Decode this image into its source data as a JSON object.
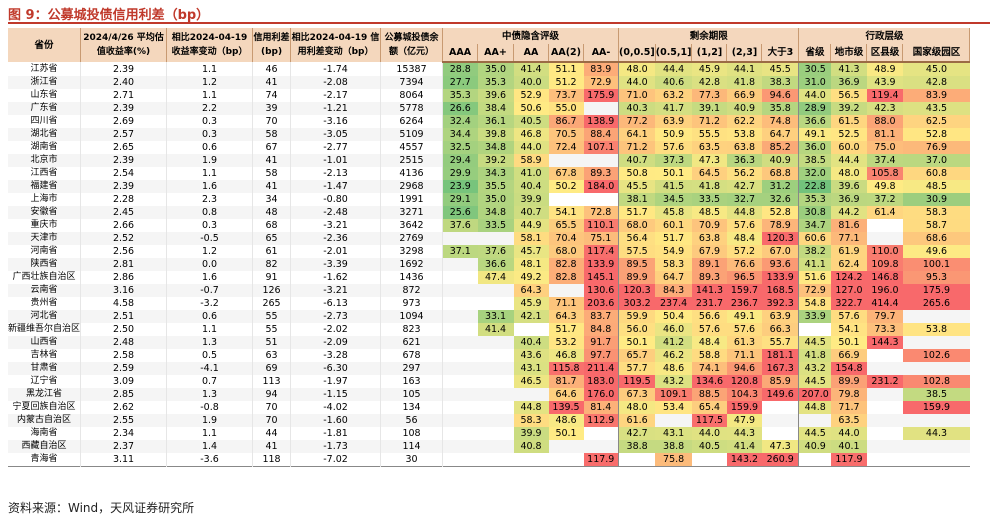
{
  "title": "图 9：公募城投债信用利差（bp）",
  "source": "资料来源：Wind，天风证券研究所",
  "headers": {
    "province": "省份",
    "avg_yield": "2024/4/26 平均估值收益率(%)",
    "yield_change": "相比2024-04-19 收益率变动（bp）",
    "spread": "信用利差 (bp)",
    "spread_change": "相比2024-04-19 信用利差变动（bp）",
    "balance": "公募城投债余额（亿元）",
    "group_rating": "中债隐含评级",
    "group_maturity": "剩余期限",
    "group_admin": "行政层级",
    "sub": [
      "AAA",
      "AA+",
      "AA",
      "AA(2)",
      "AA-",
      "(0,0.5]",
      "(0.5,1]",
      "(1,2]",
      "(2,3]",
      "大于3",
      "省级",
      "地市级",
      "区县级",
      "国家级园区"
    ]
  },
  "rows": [
    {
      "p": "江苏省",
      "y": "2.39",
      "yc": "1.1",
      "s": "46",
      "sc": "-1.74",
      "b": "15387",
      "v": [
        "28.8",
        "35.0",
        "41.4",
        "51.1",
        "83.9",
        "48.0",
        "44.4",
        "45.9",
        "44.1",
        "45.5",
        "30.5",
        "41.3",
        "48.9",
        "45.0"
      ]
    },
    {
      "p": "浙江省",
      "y": "2.40",
      "yc": "1.2",
      "s": "41",
      "sc": "-2.08",
      "b": "7394",
      "v": [
        "27.7",
        "35.3",
        "40.0",
        "51.2",
        "72.9",
        "44.0",
        "40.6",
        "42.8",
        "41.8",
        "38.3",
        "31.0",
        "36.9",
        "43.9",
        "42.8"
      ]
    },
    {
      "p": "山东省",
      "y": "2.71",
      "yc": "1.1",
      "s": "74",
      "sc": "-2.17",
      "b": "8064",
      "v": [
        "35.3",
        "39.6",
        "52.9",
        "73.7",
        "175.9",
        "71.0",
        "63.2",
        "77.3",
        "66.9",
        "94.6",
        "44.0",
        "56.5",
        "119.4",
        "83.9"
      ]
    },
    {
      "p": "广东省",
      "y": "2.39",
      "yc": "2.2",
      "s": "39",
      "sc": "-1.21",
      "b": "5778",
      "v": [
        "26.6",
        "38.4",
        "50.6",
        "55.0",
        "",
        "40.3",
        "41.7",
        "39.1",
        "40.9",
        "35.8",
        "28.9",
        "39.2",
        "42.3",
        "43.5"
      ]
    },
    {
      "p": "四川省",
      "y": "2.69",
      "yc": "0.3",
      "s": "70",
      "sc": "-3.16",
      "b": "6264",
      "v": [
        "32.4",
        "36.1",
        "40.5",
        "86.7",
        "138.9",
        "77.2",
        "63.9",
        "71.2",
        "62.2",
        "74.8",
        "36.6",
        "61.5",
        "88.0",
        "62.5"
      ]
    },
    {
      "p": "湖北省",
      "y": "2.57",
      "yc": "0.3",
      "s": "58",
      "sc": "-3.05",
      "b": "5109",
      "v": [
        "34.4",
        "39.8",
        "46.8",
        "70.5",
        "88.4",
        "64.1",
        "50.9",
        "55.5",
        "53.8",
        "64.7",
        "49.1",
        "52.5",
        "81.1",
        "52.8"
      ]
    },
    {
      "p": "湖南省",
      "y": "2.65",
      "yc": "0.6",
      "s": "67",
      "sc": "-2.77",
      "b": "4557",
      "v": [
        "32.5",
        "34.8",
        "44.0",
        "72.4",
        "107.1",
        "71.2",
        "57.6",
        "63.5",
        "63.8",
        "85.2",
        "36.0",
        "60.0",
        "75.0",
        "76.9"
      ]
    },
    {
      "p": "北京市",
      "y": "2.39",
      "yc": "1.9",
      "s": "41",
      "sc": "-1.01",
      "b": "2515",
      "v": [
        "29.4",
        "39.2",
        "58.9",
        "",
        "",
        "40.7",
        "37.3",
        "47.3",
        "36.3",
        "40.9",
        "38.5",
        "44.4",
        "37.4",
        "37.0"
      ]
    },
    {
      "p": "江西省",
      "y": "2.54",
      "yc": "1.1",
      "s": "58",
      "sc": "-2.13",
      "b": "4136",
      "v": [
        "29.9",
        "34.3",
        "41.0",
        "67.8",
        "89.3",
        "50.8",
        "50.1",
        "64.5",
        "56.2",
        "68.8",
        "32.0",
        "48.0",
        "105.8",
        "60.8"
      ]
    },
    {
      "p": "福建省",
      "y": "2.39",
      "yc": "1.6",
      "s": "41",
      "sc": "-1.47",
      "b": "2968",
      "v": [
        "23.9",
        "35.5",
        "40.4",
        "50.2",
        "184.0",
        "45.5",
        "41.5",
        "41.8",
        "42.7",
        "31.2",
        "22.8",
        "39.6",
        "49.8",
        "48.5"
      ]
    },
    {
      "p": "上海市",
      "y": "2.28",
      "yc": "2.3",
      "s": "34",
      "sc": "-0.80",
      "b": "1991",
      "v": [
        "29.1",
        "35.0",
        "39.9",
        "",
        "",
        "38.1",
        "34.5",
        "33.5",
        "32.7",
        "32.6",
        "35.3",
        "36.9",
        "37.2",
        "30.9"
      ]
    },
    {
      "p": "安徽省",
      "y": "2.45",
      "yc": "0.8",
      "s": "48",
      "sc": "-2.48",
      "b": "3271",
      "v": [
        "25.6",
        "34.8",
        "40.7",
        "54.1",
        "72.8",
        "51.7",
        "45.8",
        "48.5",
        "44.8",
        "52.8",
        "30.8",
        "44.2",
        "61.4",
        "58.3"
      ]
    },
    {
      "p": "重庆市",
      "y": "2.66",
      "yc": "0.3",
      "s": "68",
      "sc": "-3.21",
      "b": "3642",
      "v": [
        "37.6",
        "33.5",
        "44.9",
        "65.5",
        "110.1",
        "68.0",
        "60.1",
        "70.9",
        "57.6",
        "78.9",
        "34.7",
        "81.6",
        "",
        "58.7"
      ]
    },
    {
      "p": "天津市",
      "y": "2.52",
      "yc": "-0.5",
      "s": "65",
      "sc": "-2.36",
      "b": "2769",
      "v": [
        "",
        "",
        "58.1",
        "70.4",
        "75.1",
        "56.4",
        "51.7",
        "63.8",
        "48.4",
        "120.3",
        "60.6",
        "77.1",
        "",
        "68.6"
      ]
    },
    {
      "p": "河南省",
      "y": "2.56",
      "yc": "1.2",
      "s": "61",
      "sc": "-2.01",
      "b": "3298",
      "v": [
        "37.1",
        "37.6",
        "45.7",
        "68.0",
        "117.4",
        "57.5",
        "54.9",
        "67.9",
        "57.2",
        "67.0",
        "38.2",
        "61.9",
        "110.0",
        "49.6"
      ]
    },
    {
      "p": "陕西省",
      "y": "2.81",
      "yc": "0.0",
      "s": "82",
      "sc": "-3.39",
      "b": "1692",
      "v": [
        "",
        "36.6",
        "48.1",
        "82.8",
        "133.9",
        "89.5",
        "58.3",
        "89.1",
        "76.6",
        "93.6",
        "41.1",
        "62.4",
        "109.8",
        "100.1"
      ]
    },
    {
      "p": "广西壮族自治区",
      "y": "2.86",
      "yc": "1.6",
      "s": "91",
      "sc": "-1.62",
      "b": "1436",
      "v": [
        "",
        "47.4",
        "49.2",
        "82.8",
        "145.1",
        "89.9",
        "64.7",
        "89.3",
        "96.5",
        "133.9",
        "51.6",
        "124.2",
        "146.8",
        "95.3"
      ]
    },
    {
      "p": "云南省",
      "y": "3.16",
      "yc": "-0.7",
      "s": "126",
      "sc": "-3.21",
      "b": "872",
      "v": [
        "",
        "",
        "64.3",
        "",
        "130.6",
        "120.3",
        "84.3",
        "141.3",
        "159.7",
        "168.5",
        "72.9",
        "127.0",
        "196.0",
        "175.9"
      ]
    },
    {
      "p": "贵州省",
      "y": "4.58",
      "yc": "-3.2",
      "s": "265",
      "sc": "-6.13",
      "b": "973",
      "v": [
        "",
        "",
        "45.9",
        "71.1",
        "203.6",
        "303.2",
        "237.4",
        "231.7",
        "236.7",
        "392.3",
        "54.8",
        "322.7",
        "414.4",
        "265.6"
      ]
    },
    {
      "p": "河北省",
      "y": "2.51",
      "yc": "0.6",
      "s": "55",
      "sc": "-2.73",
      "b": "1094",
      "v": [
        "",
        "33.1",
        "42.1",
        "64.3",
        "83.7",
        "59.9",
        "50.4",
        "56.6",
        "49.1",
        "63.9",
        "33.9",
        "57.6",
        "79.7",
        ""
      ]
    },
    {
      "p": "新疆维吾尔自治区",
      "y": "2.50",
      "yc": "1.1",
      "s": "55",
      "sc": "-2.02",
      "b": "823",
      "v": [
        "",
        "41.4",
        "",
        "51.7",
        "84.8",
        "56.0",
        "46.0",
        "57.6",
        "57.6",
        "66.3",
        "",
        "54.1",
        "73.3",
        "53.8"
      ]
    },
    {
      "p": "山西省",
      "y": "2.48",
      "yc": "1.3",
      "s": "51",
      "sc": "-2.09",
      "b": "621",
      "v": [
        "",
        "",
        "40.4",
        "53.2",
        "91.7",
        "50.1",
        "41.2",
        "48.4",
        "61.3",
        "55.7",
        "44.5",
        "50.1",
        "144.3",
        ""
      ]
    },
    {
      "p": "吉林省",
      "y": "2.58",
      "yc": "0.5",
      "s": "63",
      "sc": "-3.28",
      "b": "678",
      "v": [
        "",
        "",
        "43.6",
        "46.8",
        "97.7",
        "65.7",
        "46.2",
        "58.8",
        "71.1",
        "181.1",
        "41.8",
        "66.9",
        "",
        "102.6"
      ]
    },
    {
      "p": "甘肃省",
      "y": "2.59",
      "yc": "-4.1",
      "s": "69",
      "sc": "-6.30",
      "b": "297",
      "v": [
        "",
        "",
        "43.1",
        "115.8",
        "211.4",
        "57.7",
        "48.6",
        "74.1",
        "94.6",
        "167.3",
        "43.2",
        "154.8",
        "",
        ""
      ]
    },
    {
      "p": "辽宁省",
      "y": "3.09",
      "yc": "0.7",
      "s": "113",
      "sc": "-1.97",
      "b": "163",
      "v": [
        "",
        "",
        "46.5",
        "81.7",
        "183.0",
        "119.5",
        "43.2",
        "134.6",
        "120.8",
        "85.9",
        "44.5",
        "89.9",
        "231.2",
        "102.8"
      ]
    },
    {
      "p": "黑龙江省",
      "y": "2.85",
      "yc": "1.3",
      "s": "94",
      "sc": "-1.15",
      "b": "105",
      "v": [
        "",
        "",
        "",
        "64.6",
        "176.0",
        "67.3",
        "109.1",
        "88.5",
        "104.3",
        "149.6",
        "207.0",
        "79.8",
        "",
        "38.5"
      ]
    },
    {
      "p": "宁夏回族自治区",
      "y": "2.62",
      "yc": "-0.8",
      "s": "70",
      "sc": "-4.02",
      "b": "134",
      "v": [
        "",
        "",
        "44.8",
        "139.5",
        "81.4",
        "48.0",
        "53.4",
        "65.4",
        "159.9",
        "",
        "44.8",
        "71.7",
        "",
        "159.9"
      ]
    },
    {
      "p": "内蒙古自治区",
      "y": "2.55",
      "yc": "1.9",
      "s": "70",
      "sc": "-1.60",
      "b": "56",
      "v": [
        "",
        "",
        "58.3",
        "48.6",
        "112.9",
        "61.6",
        "",
        "117.5",
        "47.9",
        "",
        "",
        "63.5",
        "",
        ""
      ]
    },
    {
      "p": "海南省",
      "y": "2.34",
      "yc": "1.1",
      "s": "44",
      "sc": "-1.81",
      "b": "108",
      "v": [
        "",
        "",
        "39.9",
        "50.1",
        "",
        "42.7",
        "43.1",
        "44.0",
        "44.3",
        "",
        "44.5",
        "44.0",
        "",
        "44.3"
      ]
    },
    {
      "p": "西藏自治区",
      "y": "2.37",
      "yc": "1.4",
      "s": "41",
      "sc": "-1.73",
      "b": "114",
      "v": [
        "",
        "",
        "40.8",
        "",
        "",
        "38.8",
        "38.8",
        "40.5",
        "41.4",
        "47.3",
        "40.9",
        "40.1",
        "",
        ""
      ]
    },
    {
      "p": "青海省",
      "y": "3.11",
      "yc": "-3.6",
      "s": "118",
      "sc": "-7.02",
      "b": "30",
      "v": [
        "",
        "",
        "",
        "",
        "117.9",
        "",
        "75.8",
        "",
        "143.2",
        "260.9",
        "",
        "117.9",
        "",
        ""
      ]
    }
  ]
}
